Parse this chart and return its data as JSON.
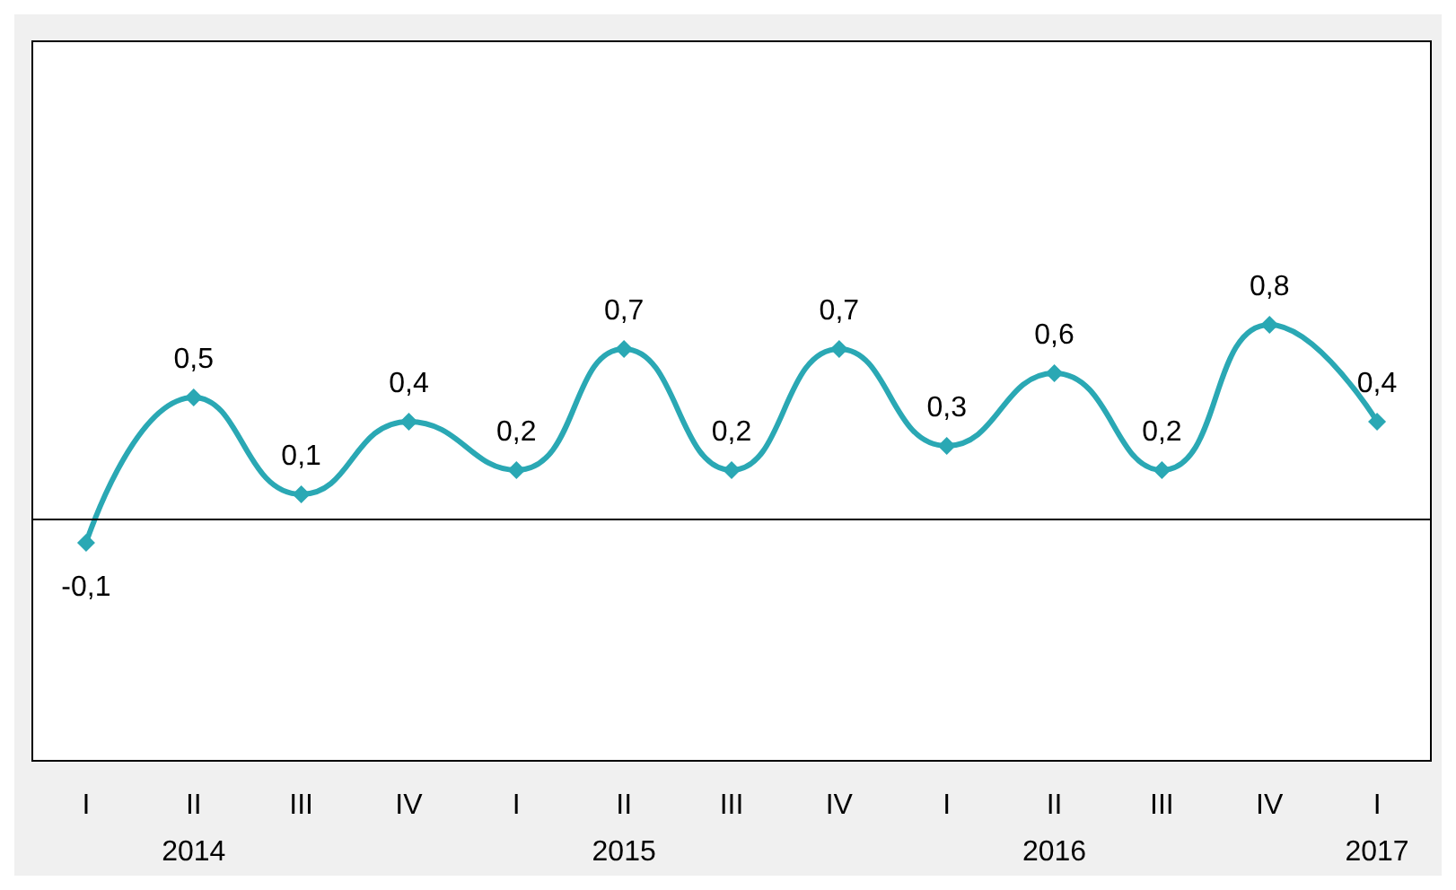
{
  "chart_data": {
    "type": "line",
    "categories": [
      "I",
      "II\n2014",
      "III",
      "IV",
      "I",
      "II\n2015",
      "III",
      "IV",
      "I",
      "II\n2016",
      "III",
      "IV",
      "I\n2017"
    ],
    "series": [
      {
        "color": "#2aa8b4",
        "values": [
          -0.1,
          0.5,
          0.1,
          0.4,
          0.2,
          0.7,
          0.2,
          0.7,
          0.3,
          0.6,
          0.2,
          0.8,
          0.4
        ],
        "value_labels": [
          "-0,1",
          "0,5",
          "0,1",
          "0,4",
          "0,2",
          "0,7",
          "0,2",
          "0,7",
          "0,3",
          "0,6",
          "0,2",
          "0,8",
          "0,4"
        ]
      }
    ],
    "tick_labels": "x",
    "marker": "diamond",
    "line_style": "solid",
    "grid": false
  }
}
